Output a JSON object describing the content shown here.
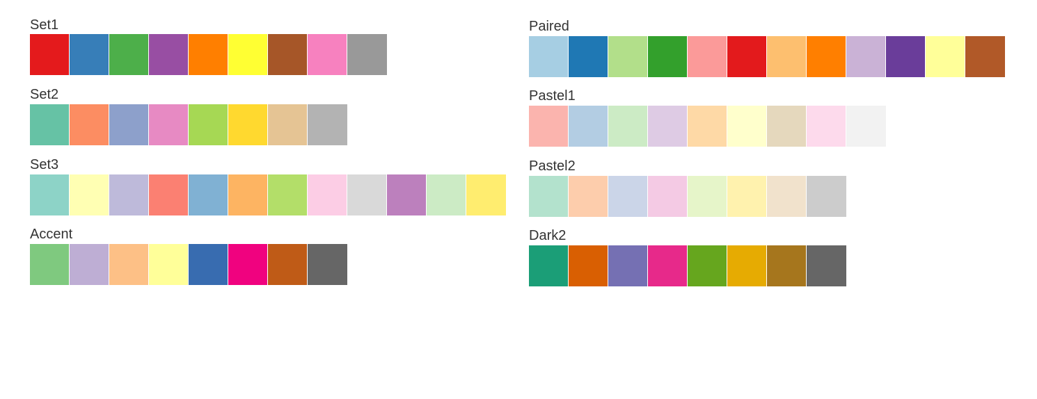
{
  "palettes_left": [
    {
      "name": "Set1",
      "colors": [
        "#E41A1C",
        "#377EB8",
        "#4DAF4A",
        "#984EA3",
        "#FF7F00",
        "#FFFF33",
        "#A65628",
        "#F781BF",
        "#999999"
      ]
    },
    {
      "name": "Set2",
      "colors": [
        "#66C2A5",
        "#FC8D62",
        "#8DA0CB",
        "#E78AC3",
        "#A6D854",
        "#FFD92F",
        "#E5C494",
        "#B3B3B3"
      ]
    },
    {
      "name": "Set3",
      "colors": [
        "#8DD3C7",
        "#FFFFB3",
        "#BEBADA",
        "#FB8072",
        "#80B1D3",
        "#FDB462",
        "#B3DE69",
        "#FCCDE5",
        "#D9D9D9",
        "#BC80BD",
        "#CCEBC5",
        "#FFED6F"
      ]
    },
    {
      "name": "Accent",
      "colors": [
        "#7FC97F",
        "#BEAED4",
        "#FDC086",
        "#FFFF99",
        "#386CB0",
        "#F0027F",
        "#BF5B17",
        "#666666"
      ]
    }
  ],
  "palettes_right": [
    {
      "name": "Paired",
      "colors": [
        "#A6CEE3",
        "#1F78B4",
        "#B2DF8A",
        "#33A02C",
        "#FB9A99",
        "#E31A1C",
        "#FDBF6F",
        "#FF7F00",
        "#CAB2D6",
        "#6A3D9A",
        "#FFFF99",
        "#B15928"
      ]
    },
    {
      "name": "Pastel1",
      "colors": [
        "#FBB4AE",
        "#B3CDE3",
        "#CCEBC5",
        "#DECBE4",
        "#FED9A6",
        "#FFFFCC",
        "#E5D8BD",
        "#FDDAEC",
        "#F2F2F2"
      ]
    },
    {
      "name": "Pastel2",
      "colors": [
        "#B3E2CD",
        "#FDCDAC",
        "#CBD5E8",
        "#F4CAE4",
        "#E6F5C9",
        "#FFF2AE",
        "#F1E2CC",
        "#CCCCCC"
      ]
    },
    {
      "name": "Dark2",
      "colors": [
        "#1B9E77",
        "#D95F02",
        "#7570B3",
        "#E7298A",
        "#66A61E",
        "#E6AB02",
        "#A6761D",
        "#666666"
      ]
    }
  ]
}
